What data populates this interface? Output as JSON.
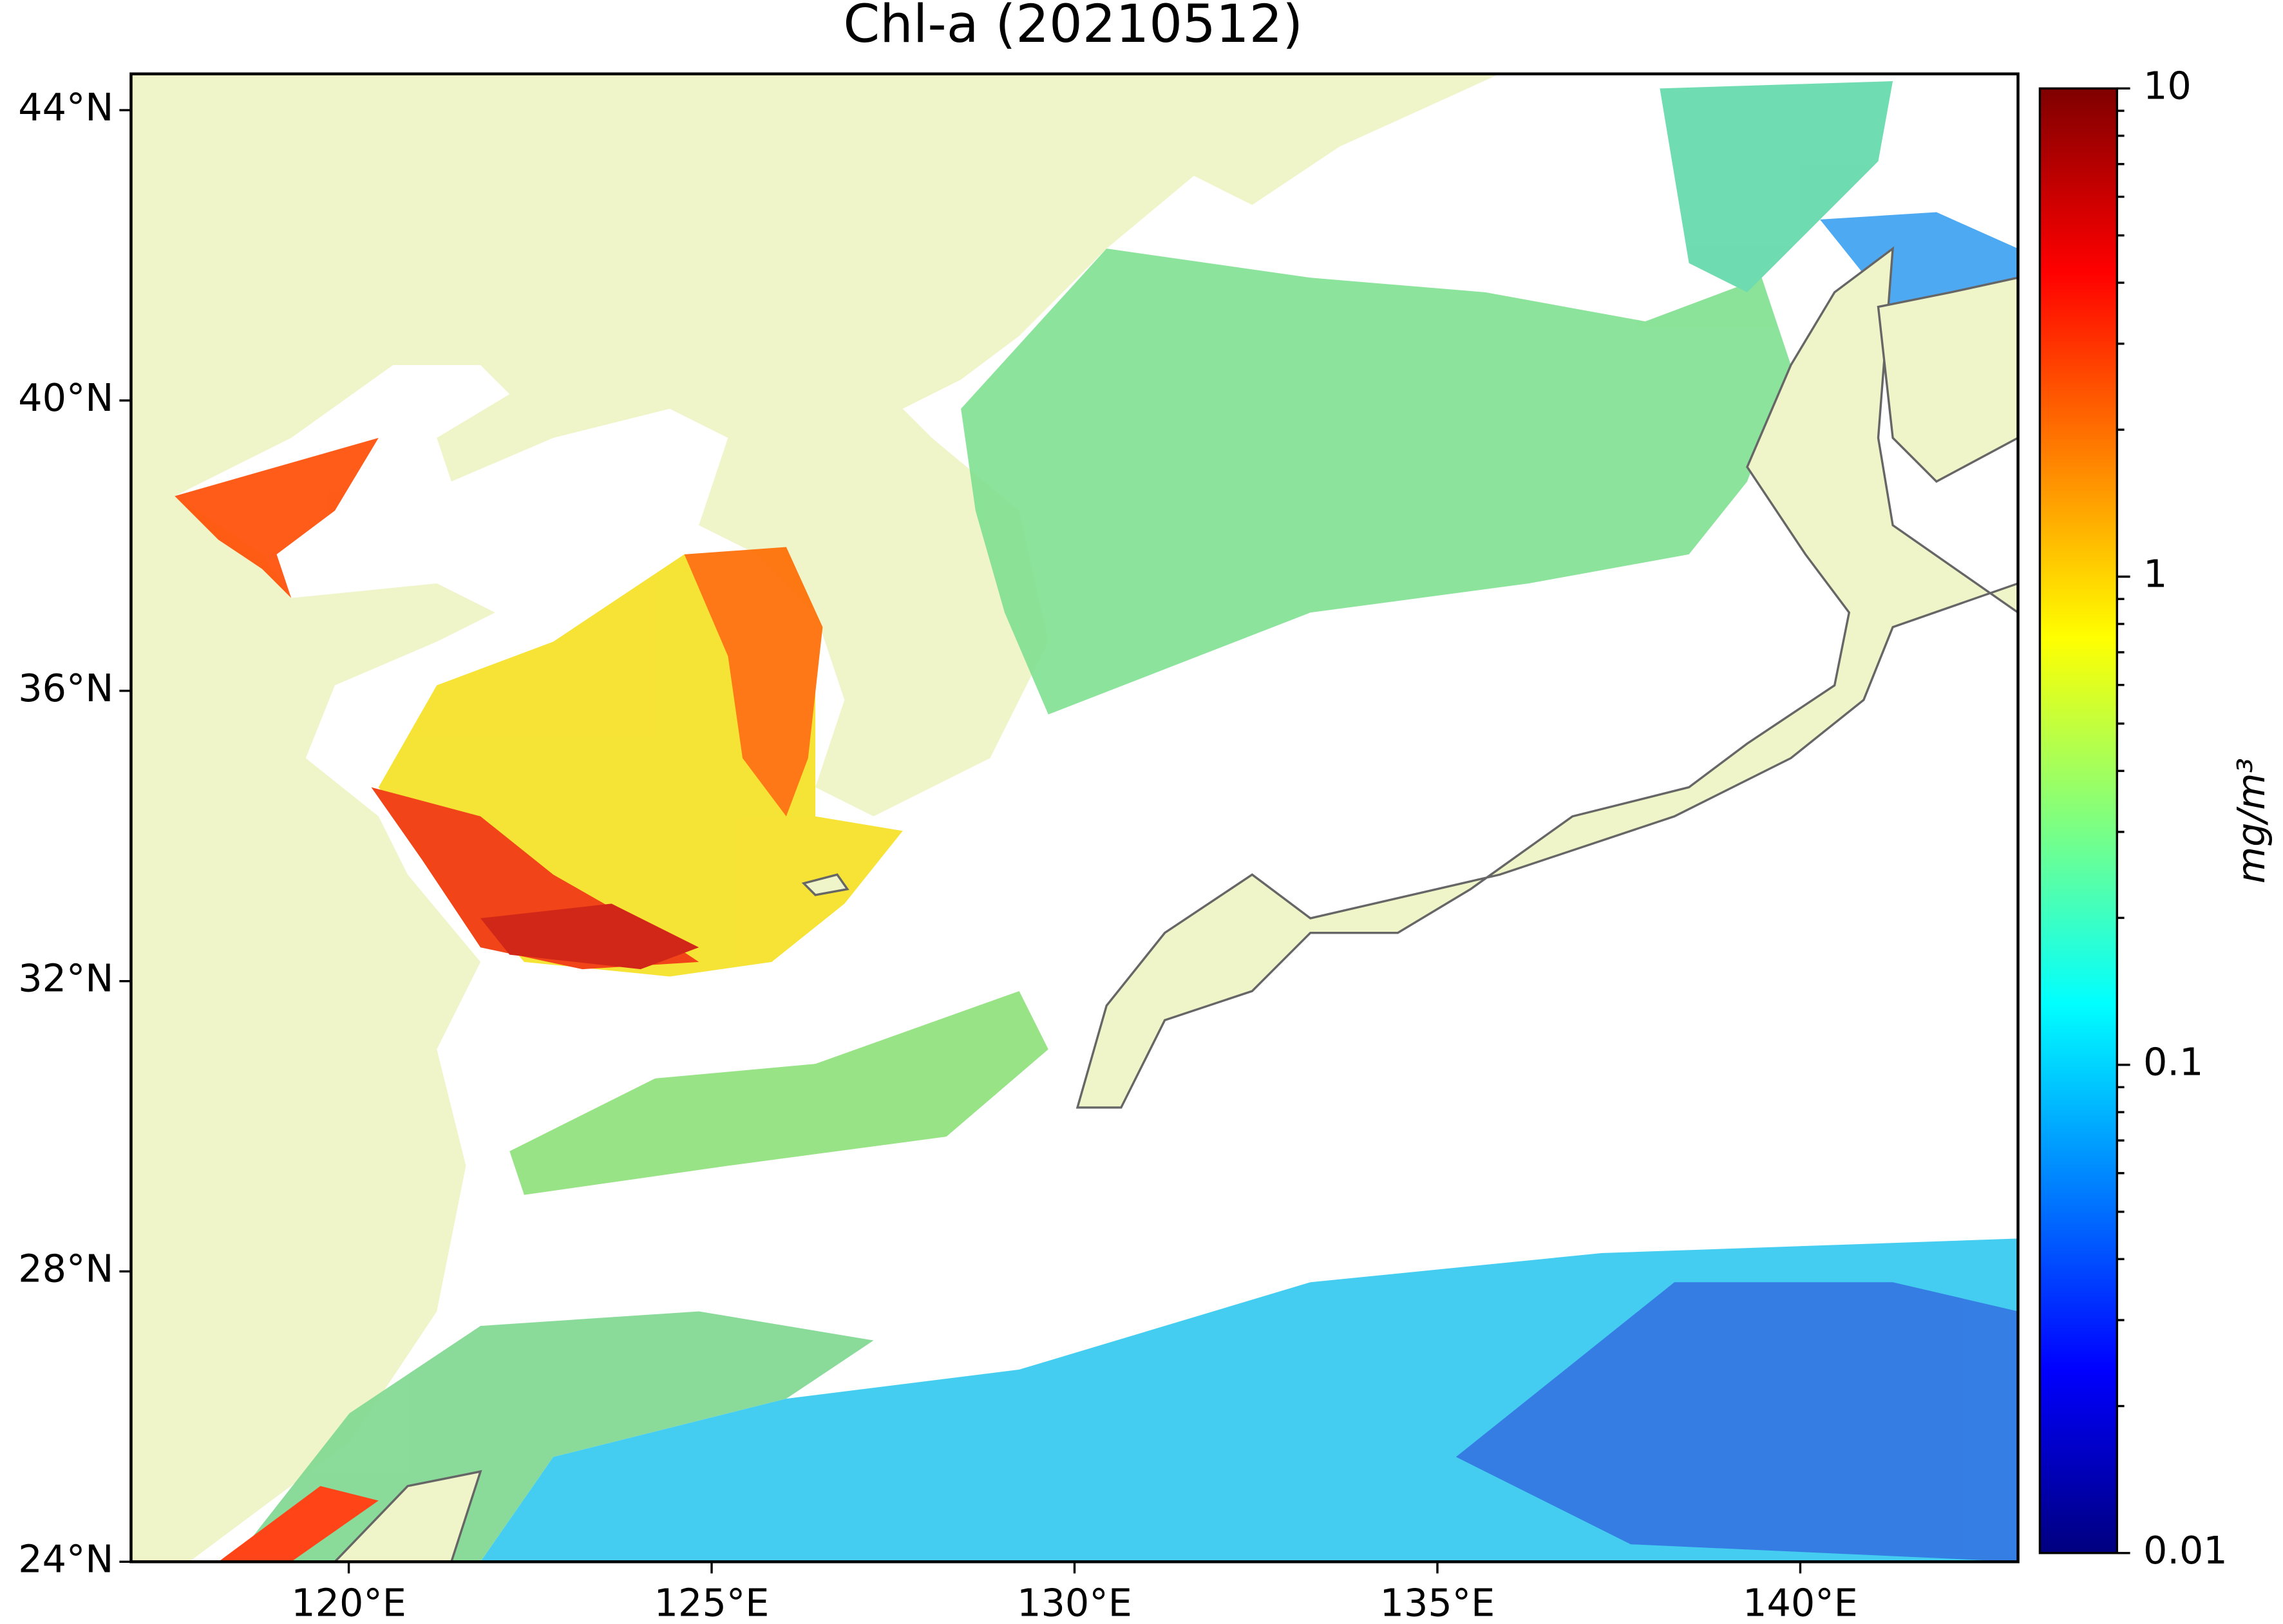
{
  "title": "Chl-a (20210512)",
  "map": {
    "type": "map",
    "land_color": "#eff5c8",
    "xlim": [
      117,
      143
    ],
    "ylim": [
      24,
      44.5
    ],
    "xticks": [
      {
        "value": 120,
        "label": "120°E"
      },
      {
        "value": 125,
        "label": "125°E"
      },
      {
        "value": 130,
        "label": "130°E"
      },
      {
        "value": 135,
        "label": "135°E"
      },
      {
        "value": 140,
        "label": "140°E"
      }
    ],
    "yticks": [
      {
        "value": 24,
        "label": "24°N"
      },
      {
        "value": 28,
        "label": "28°N"
      },
      {
        "value": 32,
        "label": "32°N"
      },
      {
        "value": 36,
        "label": "36°N"
      },
      {
        "value": 40,
        "label": "40°N"
      },
      {
        "value": 44,
        "label": "44°N"
      }
    ]
  },
  "colorbar": {
    "label": "mg/m³",
    "scale": "log",
    "colormap": "jet",
    "lim": [
      0.01,
      10
    ],
    "ticks": [
      0.01,
      0.1,
      1,
      10
    ],
    "minor_ticks": [
      0.02,
      0.03,
      0.04,
      0.05,
      0.06,
      0.07,
      0.08,
      0.09,
      0.2,
      0.3,
      0.4,
      0.5,
      0.6,
      0.7,
      0.8,
      0.9,
      2,
      3,
      4,
      5,
      6,
      7,
      8,
      9
    ]
  }
}
